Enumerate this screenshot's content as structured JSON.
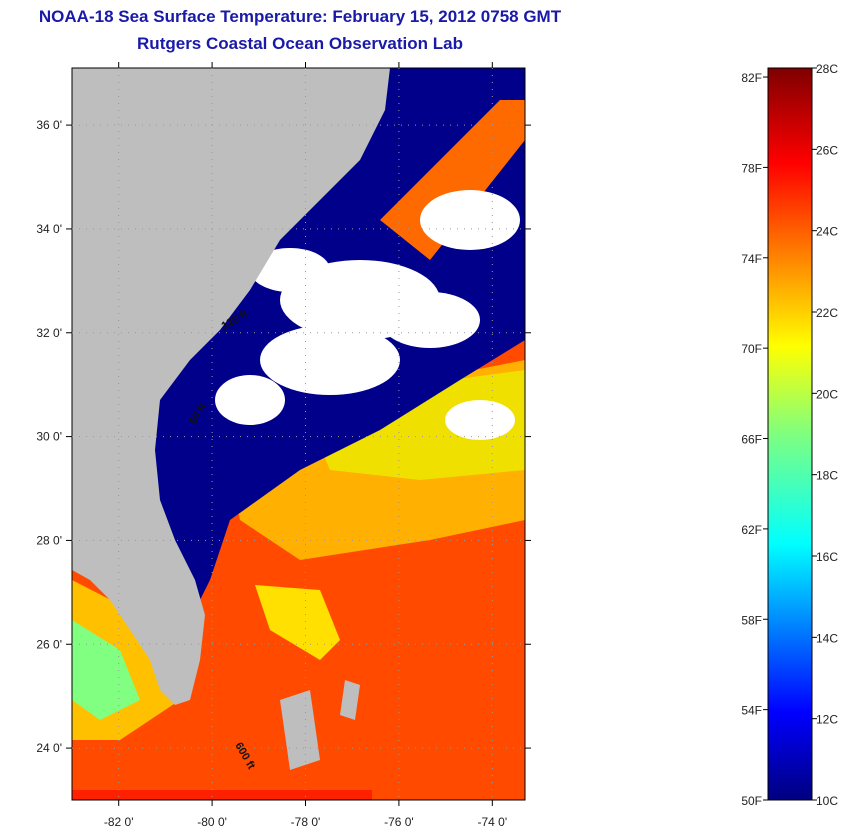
{
  "title": "NOAA-18 Sea Surface Temperature:  February 15, 2012 0758 GMT",
  "subtitle": "Rutgers Coastal Ocean Observation Lab",
  "map": {
    "lat_ticks": [
      "36 0'",
      "34 0'",
      "32 0'",
      "30 0'",
      "28 0'",
      "26 0'",
      "24 0'"
    ],
    "lat_values": [
      36,
      34,
      32,
      30,
      28,
      26,
      24
    ],
    "lon_ticks": [
      "-82 0'",
      "-80 0'",
      "-78 0'",
      "-76 0'",
      "-74 0'"
    ],
    "lon_values": [
      -82,
      -80,
      -78,
      -76,
      -74
    ],
    "lat_range": [
      23,
      37.1
    ],
    "lon_range": [
      -83,
      -73.3
    ],
    "contour_labels": [
      "120 ft",
      "60 ft",
      "600 ft"
    ],
    "colors": {
      "land": "#bebebe",
      "cloud": "#ffffff",
      "cold_water": "#00007f",
      "warm_water": "#ff3000"
    }
  },
  "colorbar": {
    "fahrenheit_labels": [
      "82F",
      "78F",
      "74F",
      "70F",
      "66F",
      "62F",
      "58F",
      "54F",
      "50F"
    ],
    "fahrenheit_values": [
      82,
      78,
      74,
      70,
      66,
      62,
      58,
      54,
      50
    ],
    "celsius_labels": [
      "28C",
      "26C",
      "24C",
      "22C",
      "20C",
      "18C",
      "16C",
      "14C",
      "12C",
      "10C"
    ],
    "celsius_values": [
      28,
      26,
      24,
      22,
      20,
      18,
      16,
      14,
      12,
      10
    ],
    "range_c": [
      10,
      28
    ],
    "colormap": "jet"
  }
}
